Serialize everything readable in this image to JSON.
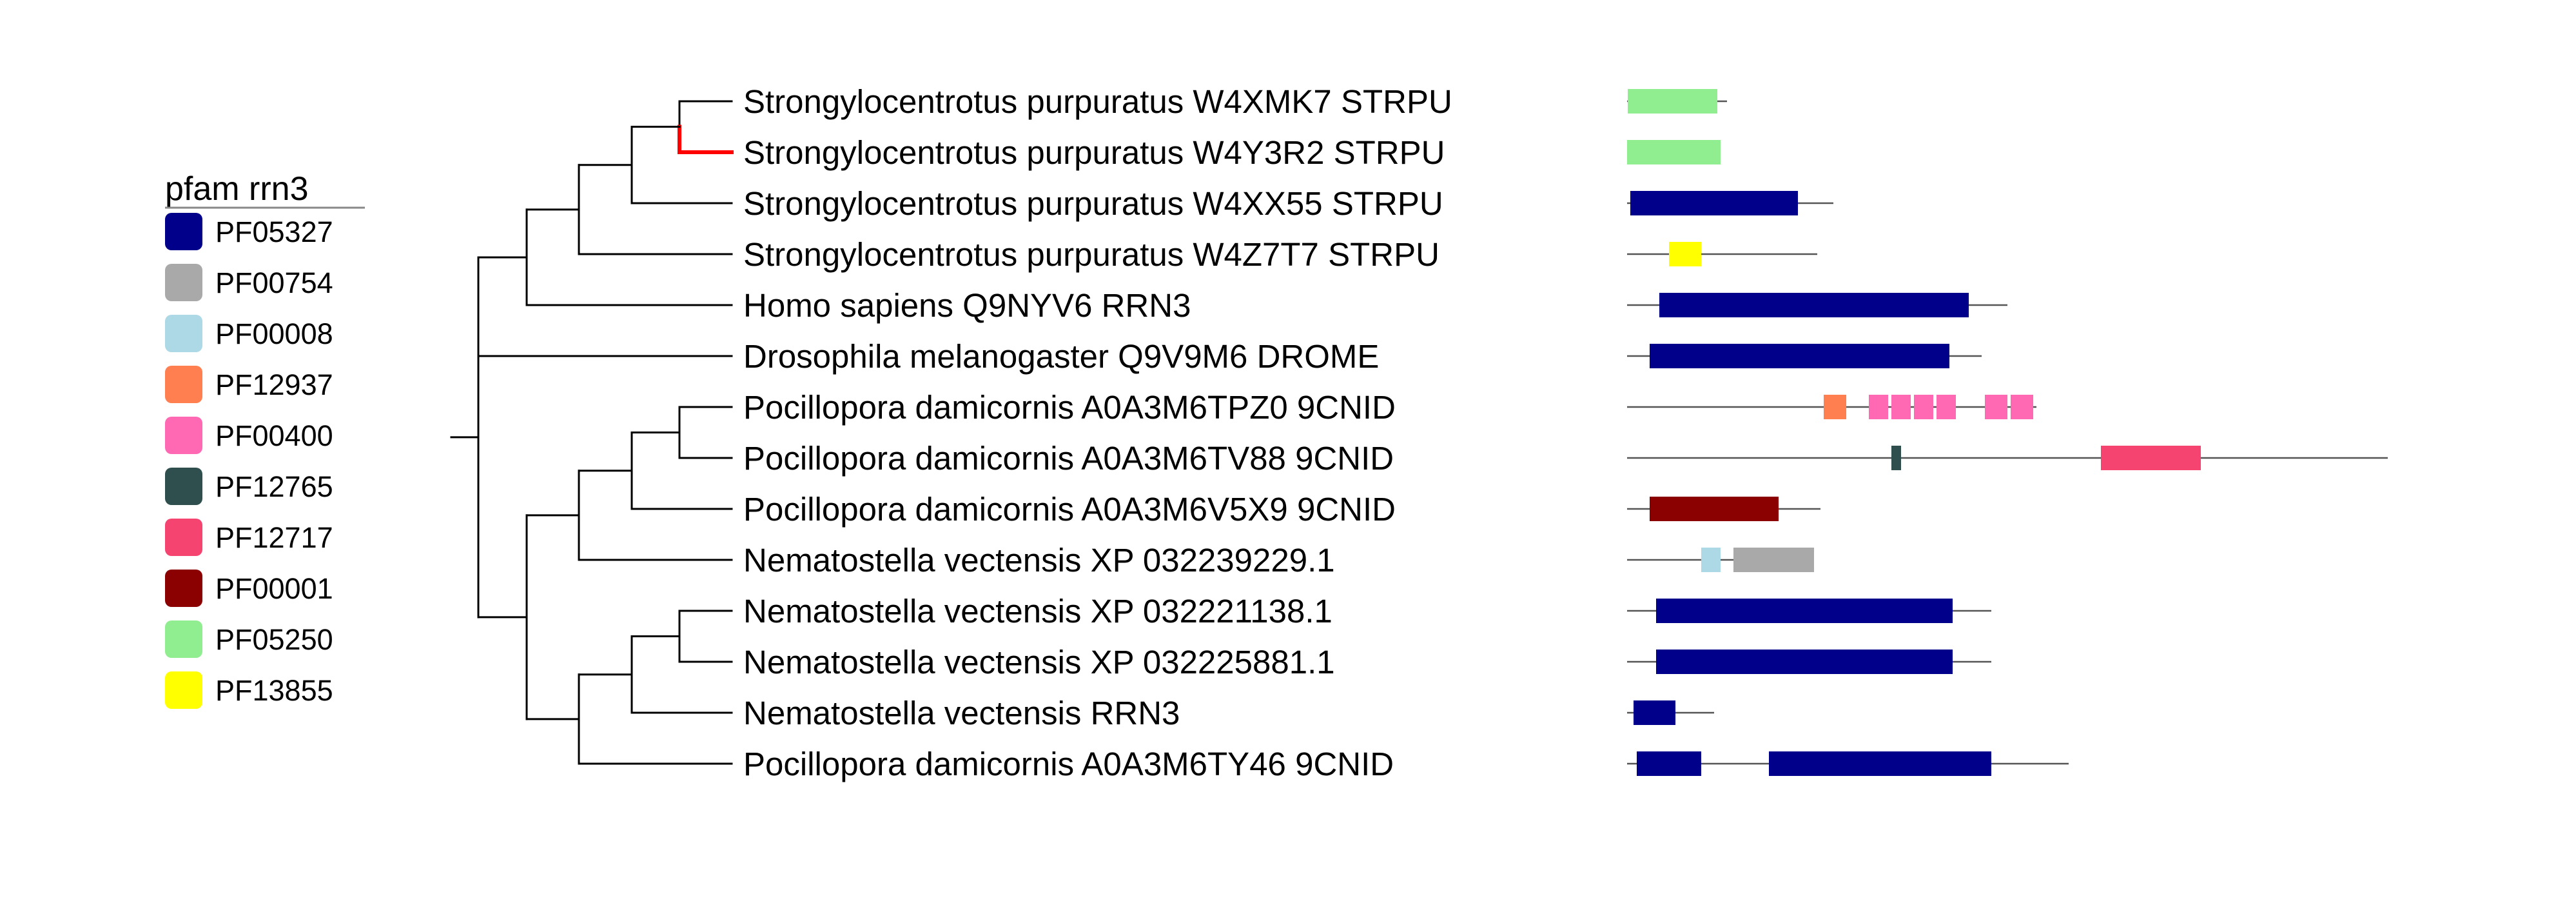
{
  "legend": {
    "title": "pfam rrn3",
    "items": [
      {
        "id": "PF05327",
        "color": "#00008b"
      },
      {
        "id": "PF00754",
        "color": "#a9a9a9"
      },
      {
        "id": "PF00008",
        "color": "#add8e6"
      },
      {
        "id": "PF12937",
        "color": "#ff7f50"
      },
      {
        "id": "PF00400",
        "color": "#ff69b4"
      },
      {
        "id": "PF12765",
        "color": "#2f4f4f"
      },
      {
        "id": "PF12717",
        "color": "#f64470"
      },
      {
        "id": "PF00001",
        "color": "#8b0000"
      },
      {
        "id": "PF05250",
        "color": "#90ee90"
      },
      {
        "id": "PF13855",
        "color": "#ffff00"
      }
    ]
  },
  "tree": {
    "highlight_color": "#ff0000",
    "leaves": [
      {
        "label": "Strongylocentrotus purpuratus W4XMK7 STRPU",
        "highlight": false,
        "domains": [
          {
            "pf": "PF05250",
            "start": 1,
            "end": 140
          }
        ],
        "length": 155
      },
      {
        "label": "Strongylocentrotus purpuratus W4Y3R2 STRPU",
        "highlight": true,
        "domains": [
          {
            "pf": "PF05250",
            "start": 0,
            "end": 145
          }
        ],
        "length": 145
      },
      {
        "label": "Strongylocentrotus purpuratus W4XX55 STRPU",
        "highlight": false,
        "domains": [
          {
            "pf": "PF05327",
            "start": 5,
            "end": 265
          }
        ],
        "length": 320
      },
      {
        "label": "Strongylocentrotus purpuratus W4Z7T7 STRPU",
        "highlight": false,
        "domains": [
          {
            "pf": "PF13855",
            "start": 65,
            "end": 115
          }
        ],
        "length": 295
      },
      {
        "label": "Homo sapiens Q9NYV6 RRN3",
        "highlight": false,
        "domains": [
          {
            "pf": "PF05327",
            "start": 50,
            "end": 530
          }
        ],
        "length": 590
      },
      {
        "label": "Drosophila melanogaster Q9V9M6 DROME",
        "highlight": false,
        "domains": [
          {
            "pf": "PF05327",
            "start": 35,
            "end": 500
          }
        ],
        "length": 550
      },
      {
        "label": "Pocillopora damicornis A0A3M6TPZ0 9CNID",
        "highlight": false,
        "domains": [
          {
            "pf": "PF12937",
            "start": 305,
            "end": 340
          },
          {
            "pf": "PF00400",
            "start": 375,
            "end": 405
          },
          {
            "pf": "PF00400",
            "start": 410,
            "end": 440
          },
          {
            "pf": "PF00400",
            "start": 445,
            "end": 475
          },
          {
            "pf": "PF00400",
            "start": 480,
            "end": 510
          },
          {
            "pf": "PF00400",
            "start": 555,
            "end": 590
          },
          {
            "pf": "PF00400",
            "start": 595,
            "end": 630
          }
        ],
        "length": 635
      },
      {
        "label": "Pocillopora damicornis A0A3M6TV88 9CNID",
        "highlight": false,
        "domains": [
          {
            "pf": "PF12765",
            "start": 410,
            "end": 425
          },
          {
            "pf": "PF12717",
            "start": 735,
            "end": 890
          }
        ],
        "length": 1180
      },
      {
        "label": "Pocillopora damicornis A0A3M6V5X9 9CNID",
        "highlight": false,
        "domains": [
          {
            "pf": "PF00001",
            "start": 35,
            "end": 235
          }
        ],
        "length": 300
      },
      {
        "label": "Nematostella vectensis XP 032239229.1",
        "highlight": false,
        "domains": [
          {
            "pf": "PF00008",
            "start": 115,
            "end": 145
          },
          {
            "pf": "PF00754",
            "start": 165,
            "end": 290
          }
        ],
        "length": 290
      },
      {
        "label": "Nematostella vectensis XP 032221138.1",
        "highlight": false,
        "domains": [
          {
            "pf": "PF05327",
            "start": 45,
            "end": 505
          }
        ],
        "length": 565
      },
      {
        "label": "Nematostella vectensis XP 032225881.1",
        "highlight": false,
        "domains": [
          {
            "pf": "PF05327",
            "start": 45,
            "end": 505
          }
        ],
        "length": 565
      },
      {
        "label": "Nematostella vectensis RRN3",
        "highlight": false,
        "domains": [
          {
            "pf": "PF05327",
            "start": 10,
            "end": 75
          }
        ],
        "length": 135
      },
      {
        "label": "Pocillopora damicornis A0A3M6TY46 9CNID",
        "highlight": false,
        "domains": [
          {
            "pf": "PF05327",
            "start": 15,
            "end": 115
          },
          {
            "pf": "PF05327",
            "start": 220,
            "end": 565
          }
        ],
        "length": 685
      }
    ]
  }
}
